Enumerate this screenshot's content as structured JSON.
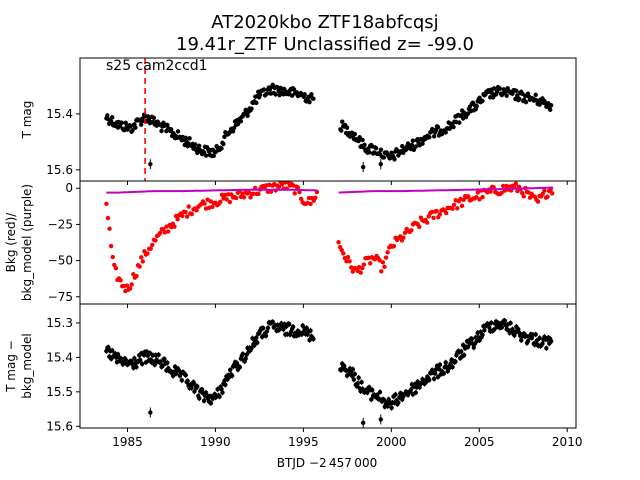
{
  "title": {
    "line1": "AT2020kbo  ZTF18abfcqsj",
    "line2": "19.41r_ZTF Unclassified z= -99.0"
  },
  "xlabel": "BTJD −2 457 000",
  "colors": {
    "data": "#000000",
    "bkg": "#ff0000",
    "bkg_model": "#bf00bf",
    "sector_line": "#ff0000"
  },
  "chart_data": [
    {
      "type": "scatter",
      "panel": "top",
      "ylabel": "T mag",
      "xlim": [
        1982.3,
        2010.5
      ],
      "ylim": [
        15.64,
        15.2
      ],
      "inverted_y": true,
      "yticks": [
        15.4,
        15.6
      ],
      "annotation": "s25 cam2ccd1",
      "sector_marker_x": 1986.0,
      "segments": [
        {
          "x": [
            1983.8,
            1984.5,
            1985.2,
            1986.0,
            1986.8,
            1987.6,
            1988.4,
            1989.2,
            1990.0,
            1990.8,
            1991.6,
            1992.4,
            1993.2,
            1994.0,
            1994.8,
            1995.6
          ],
          "y": [
            15.41,
            15.44,
            15.45,
            15.41,
            15.44,
            15.47,
            15.5,
            15.53,
            15.54,
            15.46,
            15.41,
            15.34,
            15.31,
            15.32,
            15.33,
            15.35
          ]
        },
        {
          "x": [
            1997.1,
            1997.8,
            1998.5,
            1999.2,
            1999.9,
            2000.6,
            2001.3,
            2002.0,
            2002.7,
            2003.4,
            2004.1,
            2004.8,
            2005.5,
            2006.2,
            2006.9,
            2007.6,
            2008.3,
            2009.1
          ],
          "y": [
            15.44,
            15.47,
            15.52,
            15.53,
            15.56,
            15.53,
            15.51,
            15.48,
            15.46,
            15.44,
            15.4,
            15.37,
            15.33,
            15.32,
            15.33,
            15.34,
            15.35,
            15.37
          ]
        }
      ]
    },
    {
      "type": "scatter",
      "panel": "middle",
      "ylabel": "Bkg (red)/ bkg_model (purple)",
      "xlim": [
        1982.3,
        2010.5
      ],
      "ylim": [
        -80,
        5
      ],
      "yticks": [
        0,
        -25,
        -50,
        -75
      ],
      "series": [
        {
          "name": "Bkg (red)",
          "segments": [
            {
              "x": [
                1983.8,
                1984.2,
                1984.6,
                1985.0,
                1985.4,
                1985.8,
                1986.3,
                1986.8,
                1987.5,
                1988.3,
                1989.0,
                1990.0,
                1991.0,
                1992.0,
                1993.0,
                1993.8,
                1994.5,
                1995.0,
                1995.4,
                1995.8
              ],
              "y": [
                -10,
                -55,
                -65,
                -70,
                -60,
                -50,
                -40,
                -33,
                -25,
                -17,
                -12,
                -9,
                -6,
                -3,
                0,
                2,
                0,
                -8,
                -10,
                -3
              ]
            },
            {
              "x": [
                1997.0,
                1997.5,
                1998.0,
                1998.5,
                1999.0,
                1999.5,
                2000.0,
                2000.7,
                2001.5,
                2002.5,
                2003.5,
                2004.5,
                2005.5,
                2006.5,
                2007.3,
                2007.8,
                2008.3,
                2008.8,
                2009.2
              ],
              "y": [
                -38,
                -50,
                -58,
                -52,
                -48,
                -55,
                -40,
                -33,
                -25,
                -18,
                -12,
                -7,
                -3,
                0,
                0,
                -5,
                -10,
                -3,
                0
              ]
            }
          ]
        },
        {
          "name": "bkg_model (purple)",
          "segments": [
            {
              "x": [
                1983.8,
                1984.5,
                1985.5,
                1986.5,
                1988.0,
                1990.0,
                1992.0,
                1994.0,
                1995.8
              ],
              "y": [
                -3,
                -3,
                -2.5,
                -2,
                -2,
                -1.5,
                -1,
                -1,
                -1.5
              ]
            },
            {
              "x": [
                1997.0,
                1998.0,
                1999.0,
                2000.5,
                2002.5,
                2004.5,
                2006.5,
                2008.0,
                2009.2
              ],
              "y": [
                -3,
                -2.5,
                -2,
                -2,
                -1.5,
                -1,
                -0.5,
                0,
                0.5
              ]
            }
          ]
        }
      ]
    },
    {
      "type": "scatter",
      "panel": "bottom",
      "ylabel": "T mag − bkg_model",
      "xlim": [
        1982.3,
        2010.5
      ],
      "xticks": [
        1985,
        1990,
        1995,
        2000,
        2005,
        2010
      ],
      "ylim": [
        15.605,
        15.245
      ],
      "inverted_y": true,
      "yticks": [
        15.3,
        15.4,
        15.5,
        15.6
      ],
      "segments": [
        {
          "x": [
            1983.8,
            1984.5,
            1985.2,
            1986.0,
            1986.8,
            1987.6,
            1988.4,
            1989.2,
            1990.0,
            1990.8,
            1991.6,
            1992.4,
            1993.2,
            1994.0,
            1994.8,
            1995.6
          ],
          "y": [
            15.38,
            15.41,
            15.42,
            15.4,
            15.41,
            15.44,
            15.47,
            15.51,
            15.52,
            15.45,
            15.4,
            15.34,
            15.31,
            15.32,
            15.32,
            15.34
          ]
        },
        {
          "x": [
            1997.1,
            1997.8,
            1998.5,
            1999.2,
            1999.9,
            2000.6,
            2001.3,
            2002.0,
            2002.7,
            2003.4,
            2004.1,
            2004.8,
            2005.5,
            2006.2,
            2006.9,
            2007.6,
            2008.3,
            2009.1
          ],
          "y": [
            15.42,
            15.45,
            15.5,
            15.51,
            15.54,
            15.51,
            15.49,
            15.46,
            15.44,
            15.42,
            15.38,
            15.35,
            15.31,
            15.3,
            15.32,
            15.34,
            15.35,
            15.36
          ]
        }
      ]
    }
  ]
}
